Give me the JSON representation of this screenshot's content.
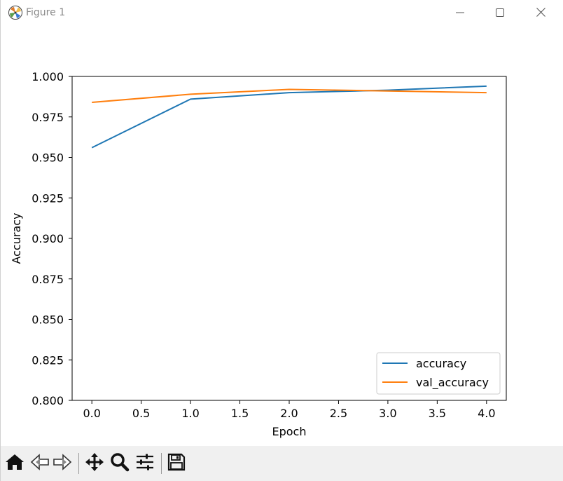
{
  "window": {
    "title": "Figure 1",
    "icons": {
      "app": "matplotlib-icon",
      "minimize": "minimize-icon",
      "maximize": "maximize-icon",
      "close": "close-icon"
    }
  },
  "toolbar": {
    "tools": [
      "home-icon",
      "back-arrow-icon",
      "forward-arrow-icon",
      "pan-icon",
      "zoom-icon",
      "configure-subplots-icon",
      "save-icon"
    ]
  },
  "chart_data": {
    "type": "line",
    "title": "",
    "xlabel": "Epoch",
    "ylabel": "Accuracy",
    "x": [
      0,
      1,
      2,
      3,
      4
    ],
    "xlim": [
      -0.2,
      4.2
    ],
    "ylim": [
      0.8,
      1.0
    ],
    "xticks": [
      "0.0",
      "0.5",
      "1.0",
      "1.5",
      "2.0",
      "2.5",
      "3.0",
      "3.5",
      "4.0"
    ],
    "yticks": [
      "0.800",
      "0.825",
      "0.850",
      "0.875",
      "0.900",
      "0.925",
      "0.950",
      "0.975",
      "1.000"
    ],
    "series": [
      {
        "name": "accuracy",
        "color": "#1f77b4",
        "values": [
          0.956,
          0.986,
          0.99,
          0.9915,
          0.994
        ]
      },
      {
        "name": "val_accuracy",
        "color": "#ff7f0e",
        "values": [
          0.984,
          0.989,
          0.992,
          0.991,
          0.99
        ]
      }
    ],
    "legend": "lower-right",
    "grid": false
  }
}
